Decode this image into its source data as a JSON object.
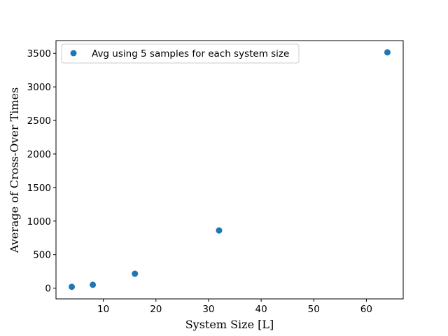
{
  "chart_data": {
    "type": "scatter",
    "title": "",
    "xlabel": "System Size [L]",
    "ylabel": "Average of Cross-Over Times",
    "xlim": [
      1,
      67
    ],
    "ylim": [
      -160,
      3690
    ],
    "xticks": [
      10,
      20,
      30,
      40,
      50,
      60
    ],
    "yticks": [
      0,
      500,
      1000,
      1500,
      2000,
      2500,
      3000,
      3500
    ],
    "grid": false,
    "legend_position": "top-left",
    "series": [
      {
        "name": "Avg using 5 samples for each system size",
        "color": "#1f77b4",
        "marker": "circle",
        "points": [
          {
            "x": 4,
            "y": 20
          },
          {
            "x": 8,
            "y": 50
          },
          {
            "x": 16,
            "y": 215
          },
          {
            "x": 32,
            "y": 860
          },
          {
            "x": 64,
            "y": 3515
          }
        ]
      }
    ]
  }
}
